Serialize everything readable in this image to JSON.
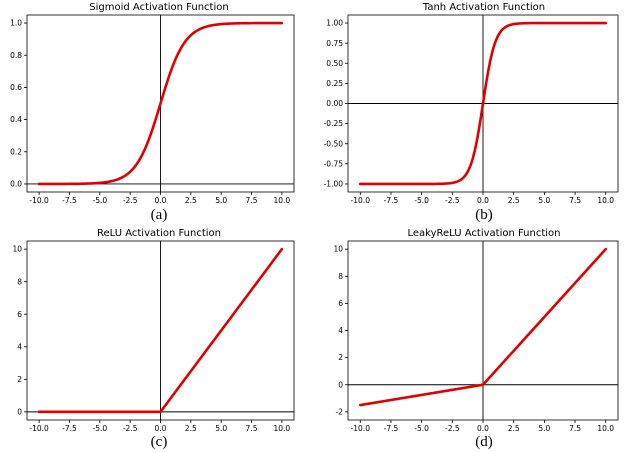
{
  "chart_data": [
    {
      "type": "line",
      "title": "Sigmoid Activation Function",
      "caption": "(a)",
      "function": "sigmoid",
      "xlim": [
        -10.0,
        10.0
      ],
      "ylim": [
        0.0,
        1.0
      ],
      "x_ticks": [
        -10.0,
        -7.5,
        -5.0,
        -2.5,
        0.0,
        2.5,
        5.0,
        7.5,
        10.0
      ],
      "x_tick_labels": [
        "-10.0",
        "-7.5",
        "-5.0",
        "-2.5",
        "0.0",
        "2.5",
        "5.0",
        "7.5",
        "10.0"
      ],
      "y_ticks": [
        0.0,
        0.2,
        0.4,
        0.6,
        0.8,
        1.0
      ],
      "y_tick_labels": [
        "0.0",
        "0.2",
        "0.4",
        "0.6",
        "0.8",
        "1.0"
      ],
      "series": [
        {
          "name": "sigmoid",
          "color": "#e00000",
          "x": [
            -10,
            -8,
            -6,
            -5,
            -4,
            -3,
            -2,
            -1,
            0,
            1,
            2,
            3,
            4,
            5,
            6,
            8,
            10
          ],
          "y": [
            4.54e-05,
            0.000335,
            0.00247,
            0.00669,
            0.018,
            0.0474,
            0.119,
            0.269,
            0.5,
            0.731,
            0.881,
            0.953,
            0.982,
            0.993,
            0.998,
            0.9997,
            0.99995
          ]
        }
      ]
    },
    {
      "type": "line",
      "title": "Tanh Activation Function",
      "caption": "(b)",
      "function": "tanh",
      "xlim": [
        -10.0,
        10.0
      ],
      "ylim": [
        -1.0,
        1.0
      ],
      "x_ticks": [
        -10.0,
        -7.5,
        -5.0,
        -2.5,
        0.0,
        2.5,
        5.0,
        7.5,
        10.0
      ],
      "x_tick_labels": [
        "-10.0",
        "-7.5",
        "-5.0",
        "-2.5",
        "0.0",
        "2.5",
        "5.0",
        "7.5",
        "10.0"
      ],
      "y_ticks": [
        -1.0,
        -0.75,
        -0.5,
        -0.25,
        0.0,
        0.25,
        0.5,
        0.75,
        1.0
      ],
      "y_tick_labels": [
        "-1.00",
        "-0.75",
        "-0.50",
        "-0.25",
        "0.00",
        "0.25",
        "0.50",
        "0.75",
        "1.00"
      ],
      "series": [
        {
          "name": "tanh",
          "color": "#e00000",
          "x": [
            -10,
            -4,
            -3,
            -2,
            -1.5,
            -1,
            -0.5,
            0,
            0.5,
            1,
            1.5,
            2,
            3,
            4,
            10
          ],
          "y": [
            -1.0,
            -0.9993,
            -0.995,
            -0.964,
            -0.905,
            -0.762,
            -0.462,
            0.0,
            0.462,
            0.762,
            0.905,
            0.964,
            0.995,
            0.9993,
            1.0
          ]
        }
      ]
    },
    {
      "type": "line",
      "title": "ReLU Activation Function",
      "caption": "(c)",
      "function": "relu",
      "xlim": [
        -10.0,
        10.0
      ],
      "ylim": [
        0.0,
        10.0
      ],
      "x_ticks": [
        -10.0,
        -7.5,
        -5.0,
        -2.5,
        0.0,
        2.5,
        5.0,
        7.5,
        10.0
      ],
      "x_tick_labels": [
        "-10.0",
        "-7.5",
        "-5.0",
        "-2.5",
        "0.0",
        "2.5",
        "5.0",
        "7.5",
        "10.0"
      ],
      "y_ticks": [
        0,
        2,
        4,
        6,
        8,
        10
      ],
      "y_tick_labels": [
        "0",
        "2",
        "4",
        "6",
        "8",
        "10"
      ],
      "series": [
        {
          "name": "relu",
          "color": "#e00000",
          "x": [
            -10,
            0,
            10
          ],
          "y": [
            0,
            0,
            10
          ]
        }
      ]
    },
    {
      "type": "line",
      "title": "LeakyReLU Activation Function",
      "caption": "(d)",
      "function": "leaky_relu",
      "xlim": [
        -10.0,
        10.0
      ],
      "ylim": [
        -2.0,
        10.0
      ],
      "x_ticks": [
        -10.0,
        -7.5,
        -5.0,
        -2.5,
        0.0,
        2.5,
        5.0,
        7.5,
        10.0
      ],
      "x_tick_labels": [
        "-10.0",
        "-7.5",
        "-5.0",
        "-2.5",
        "0.0",
        "2.5",
        "5.0",
        "7.5",
        "10.0"
      ],
      "y_ticks": [
        -2,
        0,
        2,
        4,
        6,
        8,
        10
      ],
      "y_tick_labels": [
        "-2",
        "0",
        "2",
        "4",
        "6",
        "8",
        "10"
      ],
      "series": [
        {
          "name": "leaky_relu",
          "color": "#e00000",
          "x": [
            -10,
            0,
            10
          ],
          "y": [
            -1.5,
            0,
            10
          ]
        }
      ]
    }
  ]
}
